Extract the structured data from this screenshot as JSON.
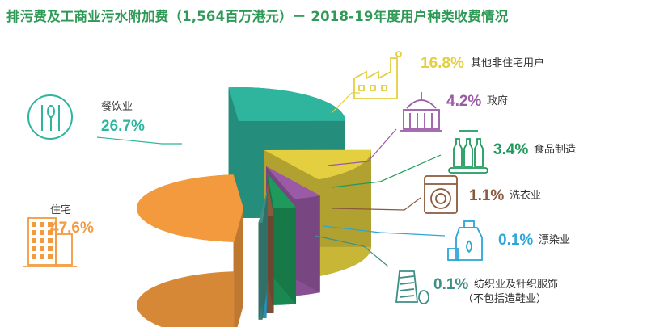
{
  "title": "排污费及工商业污水附加费（1,564百万港元）－ 2018-19年度用户种类收费情况",
  "colors": {
    "title": "#2e9a56",
    "residential": "#f39a3e",
    "restaurant": "#2fb59e",
    "other_nonres": "#e3cf3f",
    "government": "#9a5aa6",
    "food_manufacturing": "#1e9a5c",
    "laundry": "#8a5a3c",
    "dyeing": "#2aa6d8",
    "textile": "#3f8f87"
  },
  "chart_data": {
    "type": "pie",
    "style": "3d-exploded",
    "title": "排污费及工商业污水附加费（1,564百万港元）－ 2018-19年度用户种类收费情况",
    "unit": "%",
    "slices": [
      {
        "label": "住宅",
        "value": 47.6,
        "display": "47.6%",
        "color": "#f39a3e",
        "icon": "residential-building-icon"
      },
      {
        "label": "餐饮业",
        "value": 26.7,
        "display": "26.7%",
        "color": "#2fb59e",
        "icon": "fork-spoon-knife-icon"
      },
      {
        "label": "其他非住宅用户",
        "value": 16.8,
        "display": "16.8%",
        "color": "#e3cf3f",
        "icon": "factory-icon"
      },
      {
        "label": "政府",
        "value": 4.2,
        "display": "4.2%",
        "color": "#9a5aa6",
        "icon": "government-building-icon"
      },
      {
        "label": "食品制造",
        "value": 3.4,
        "display": "3.4%",
        "color": "#1e9a5c",
        "icon": "bottles-conveyor-icon"
      },
      {
        "label": "洗衣业",
        "value": 1.1,
        "display": "1.1%",
        "color": "#8a5a3c",
        "icon": "washing-machine-icon"
      },
      {
        "label": "漂染业",
        "value": 0.1,
        "display": "0.1%",
        "color": "#2aa6d8",
        "icon": "detergent-bottle-icon"
      },
      {
        "label": "纺织业及针织服饰（不包括造鞋业）",
        "value": 0.1,
        "display": "0.1%",
        "color": "#3f8f87",
        "icon": "thread-spool-icon"
      }
    ]
  }
}
